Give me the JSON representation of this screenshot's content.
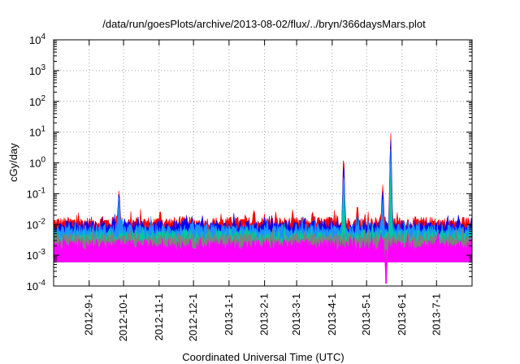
{
  "chart_data": {
    "type": "area",
    "title": "/data/run/goesPlots/archive/2013-08-02/flux/../bryn/366daysMars.plot",
    "xlabel": "Coordinated Universal Time (UTC)",
    "ylabel": "cGy/day",
    "yscale": "log",
    "ylim": [
      0.0001,
      10000
    ],
    "xlim": [
      "2012-08-01",
      "2013-08-01"
    ],
    "grid": true,
    "y_ticks": [
      {
        "base": "10",
        "exp": "-4",
        "value": 0.0001
      },
      {
        "base": "10",
        "exp": "-3",
        "value": 0.001
      },
      {
        "base": "10",
        "exp": "-2",
        "value": 0.01
      },
      {
        "base": "10",
        "exp": "-1",
        "value": 0.1
      },
      {
        "base": "10",
        "exp": "0",
        "value": 1
      },
      {
        "base": "10",
        "exp": "1",
        "value": 10
      },
      {
        "base": "10",
        "exp": "2",
        "value": 100
      },
      {
        "base": "10",
        "exp": "3",
        "value": 1000
      },
      {
        "base": "10",
        "exp": "4",
        "value": 10000
      }
    ],
    "x_ticks": [
      {
        "label": "2012-9-1",
        "date": "2012-09-01"
      },
      {
        "label": "2012-10-1",
        "date": "2012-10-01"
      },
      {
        "label": "2012-11-1",
        "date": "2012-11-01"
      },
      {
        "label": "2012-12-1",
        "date": "2012-12-01"
      },
      {
        "label": "2013-1-1",
        "date": "2013-01-01"
      },
      {
        "label": "2013-2-1",
        "date": "2013-02-01"
      },
      {
        "label": "2013-3-1",
        "date": "2013-03-01"
      },
      {
        "label": "2013-4-1",
        "date": "2013-04-01"
      },
      {
        "label": "2013-5-1",
        "date": "2013-05-01"
      },
      {
        "label": "2013-6-1",
        "date": "2013-06-01"
      },
      {
        "label": "2013-7-1",
        "date": "2013-07-01"
      }
    ],
    "series": [
      {
        "color": "#ff0000",
        "baseline": 0.012,
        "spikes": [
          {
            "date": "2012-09-27",
            "value": 0.13
          },
          {
            "date": "2012-11-02",
            "value": 0.028
          },
          {
            "date": "2013-03-15",
            "value": 0.025
          },
          {
            "date": "2013-04-11",
            "value": 1.8
          },
          {
            "date": "2013-04-23",
            "value": 0.04
          },
          {
            "date": "2013-05-15",
            "value": 0.2
          },
          {
            "date": "2013-05-22",
            "value": 10
          }
        ]
      },
      {
        "color": "#0000ff",
        "baseline": 0.009,
        "spikes": [
          {
            "date": "2012-09-27",
            "value": 0.1
          },
          {
            "date": "2013-04-11",
            "value": 1.1
          },
          {
            "date": "2013-05-15",
            "value": 0.12
          },
          {
            "date": "2013-05-22",
            "value": 6
          }
        ]
      },
      {
        "color": "#1e90ff",
        "baseline": 0.007,
        "spikes": [
          {
            "date": "2012-09-27",
            "value": 0.08
          },
          {
            "date": "2013-04-11",
            "value": 0.5
          },
          {
            "date": "2013-05-15",
            "value": 0.07
          },
          {
            "date": "2013-05-22",
            "value": 3
          }
        ]
      },
      {
        "color": "#00c8a0",
        "baseline": 0.0045,
        "spikes": [
          {
            "date": "2013-04-11",
            "value": 0.12
          },
          {
            "date": "2013-05-22",
            "value": 0.5
          }
        ]
      },
      {
        "color": "#808080",
        "baseline": 0.0035,
        "spikes": []
      },
      {
        "color": "#ff00ff",
        "baseline": 0.0022,
        "spikes": [
          {
            "date": "2013-05-18",
            "value": 0.00012
          }
        ]
      }
    ]
  }
}
